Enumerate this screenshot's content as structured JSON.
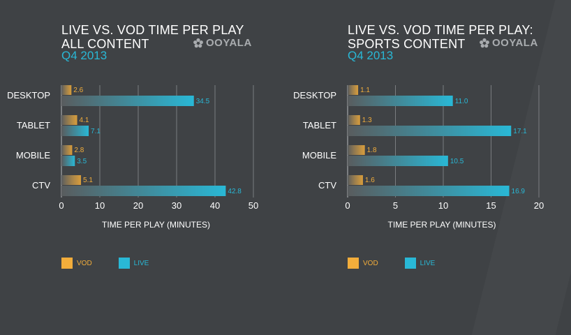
{
  "brand": {
    "logo_text": "OOYALA"
  },
  "colors": {
    "vod": "#f2ad3b",
    "live": "#29b8d6",
    "vod_label": "#f2ad3b",
    "live_label": "#29b8d6",
    "text": "#ffffff",
    "grid": "#8a8d90",
    "subtitle": "#29b8d6"
  },
  "legend": [
    {
      "key": "vod",
      "label": "VOD"
    },
    {
      "key": "live",
      "label": "LIVE"
    }
  ],
  "chart_data": [
    {
      "type": "bar",
      "title": [
        "LIVE VS. VOD TIME PER PLAY",
        "ALL CONTENT"
      ],
      "subtitle": "Q4 2013",
      "orientation": "horizontal",
      "categories": [
        "DESKTOP",
        "TABLET",
        "MOBILE",
        "CTV"
      ],
      "series": [
        {
          "name": "VOD",
          "values": [
            2.6,
            4.1,
            2.8,
            5.1
          ],
          "labels": [
            "2.6",
            "4.1",
            "2.8",
            "5.1"
          ]
        },
        {
          "name": "LIVE",
          "values": [
            34.5,
            7.1,
            3.5,
            42.8
          ],
          "labels": [
            "34.5",
            "7.1",
            "3.5",
            "42.8"
          ]
        }
      ],
      "xlabel": "TIME PER PLAY (MINUTES)",
      "xlim": [
        0,
        50
      ],
      "xticks": [
        "0",
        "10",
        "20",
        "30",
        "40",
        "50"
      ],
      "xtick_values": [
        0,
        10,
        20,
        30,
        40,
        50
      ],
      "grid": true
    },
    {
      "type": "bar",
      "title": [
        "LIVE VS. VOD TIME PER PLAY:",
        "SPORTS CONTENT"
      ],
      "subtitle": "Q4 2013",
      "orientation": "horizontal",
      "categories": [
        "DESKTOP",
        "TABLET",
        "MOBILE",
        "CTV"
      ],
      "series": [
        {
          "name": "VOD",
          "values": [
            1.1,
            1.3,
            1.8,
            1.6
          ],
          "labels": [
            "1.1",
            "1.3",
            "1.8",
            "1.6"
          ]
        },
        {
          "name": "LIVE",
          "values": [
            11.0,
            17.1,
            10.5,
            16.9
          ],
          "labels": [
            "11.0",
            "17.1",
            "10.5",
            "16.9"
          ]
        }
      ],
      "xlabel": "TIME PER PLAY (MINUTES)",
      "xlim": [
        0,
        20
      ],
      "xticks": [
        "0",
        "5",
        "10",
        "15",
        "20"
      ],
      "xtick_values": [
        0,
        5,
        10,
        15,
        20
      ],
      "grid": true
    }
  ]
}
